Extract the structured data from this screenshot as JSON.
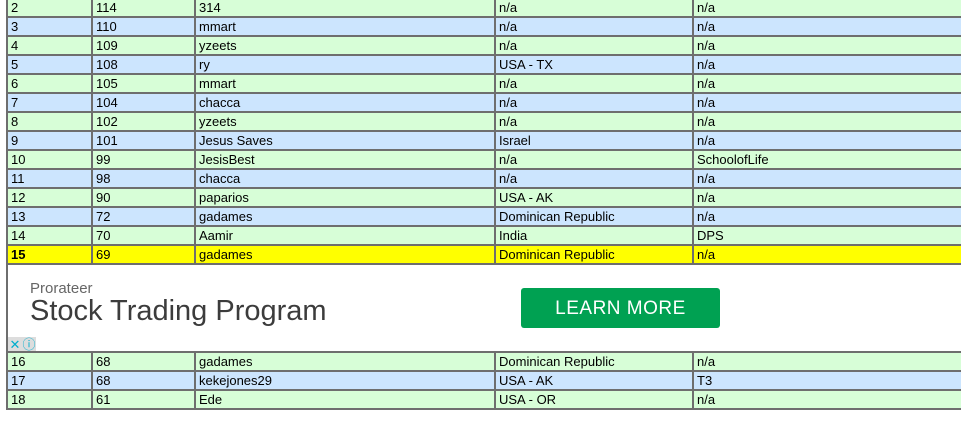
{
  "rows": [
    [
      "2",
      "114",
      "314",
      "n/a",
      "n/a"
    ],
    [
      "3",
      "110",
      "mmart",
      "n/a",
      "n/a"
    ],
    [
      "4",
      "109",
      "yzeets",
      "n/a",
      "n/a"
    ],
    [
      "5",
      "108",
      "ry",
      "USA - TX",
      "n/a"
    ],
    [
      "6",
      "105",
      "mmart",
      "n/a",
      "n/a"
    ],
    [
      "7",
      "104",
      "chacca",
      "n/a",
      "n/a"
    ],
    [
      "8",
      "102",
      "yzeets",
      "n/a",
      "n/a"
    ],
    [
      "9",
      "101",
      "Jesus Saves",
      "Israel",
      "n/a"
    ],
    [
      "10",
      "99",
      "JesisBest",
      "n/a",
      "SchoolofLife"
    ],
    [
      "11",
      "98",
      "chacca",
      "n/a",
      "n/a"
    ],
    [
      "12",
      "90",
      "paparios",
      "USA - AK",
      "n/a"
    ],
    [
      "13",
      "72",
      "gadames",
      "Dominican Republic",
      "n/a"
    ],
    [
      "14",
      "70",
      "Aamir",
      "India",
      "DPS"
    ],
    [
      "15",
      "69",
      "gadames",
      "Dominican Republic",
      "n/a"
    ],
    [
      "16",
      "68",
      "gadames",
      "Dominican Republic",
      "n/a"
    ],
    [
      "17",
      "68",
      "kekejones29",
      "USA - AK",
      "T3"
    ],
    [
      "18",
      "61",
      "Ede",
      "USA - OR",
      "n/a"
    ]
  ],
  "highlight_rank": "15",
  "ad_after_rank": "15",
  "ad": {
    "sponsor": "Prorateer",
    "headline": "Stock Trading Program",
    "cta": "LEARN MORE",
    "close_icon": "close-x-icon",
    "info_icon": "info-icon"
  },
  "colors": {
    "row_green": "#d7fed7",
    "row_blue": "#cce5fe",
    "highlight": "#ffff00",
    "cta": "#00a152"
  }
}
